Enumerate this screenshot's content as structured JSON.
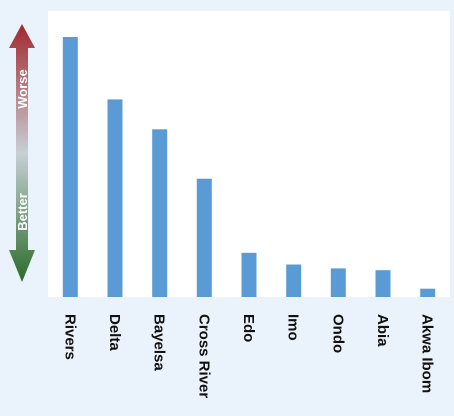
{
  "scale": {
    "top_label": "Worse",
    "bottom_label": "Better",
    "colors": {
      "worse": "#a1282e",
      "middle": "#c7d0d6",
      "better": "#2b6b2a"
    }
  },
  "colors": {
    "bar": "#5b9bd5",
    "plot_background": "#ffffff",
    "page_background": "#eaf2fb"
  },
  "chart_data": {
    "type": "bar",
    "title": "",
    "xlabel": "",
    "ylabel": "",
    "categories": [
      "Rivers",
      "Delta",
      "Bayelsa",
      "Cross River",
      "Edo",
      "Imo",
      "Ondo",
      "Abia",
      "Akwa Ibom"
    ],
    "values": [
      100,
      76,
      64.5,
      45.5,
      17,
      12.5,
      11,
      10.3,
      3.2
    ],
    "ylim": [
      0,
      110
    ],
    "grid": false,
    "legend": "none"
  }
}
